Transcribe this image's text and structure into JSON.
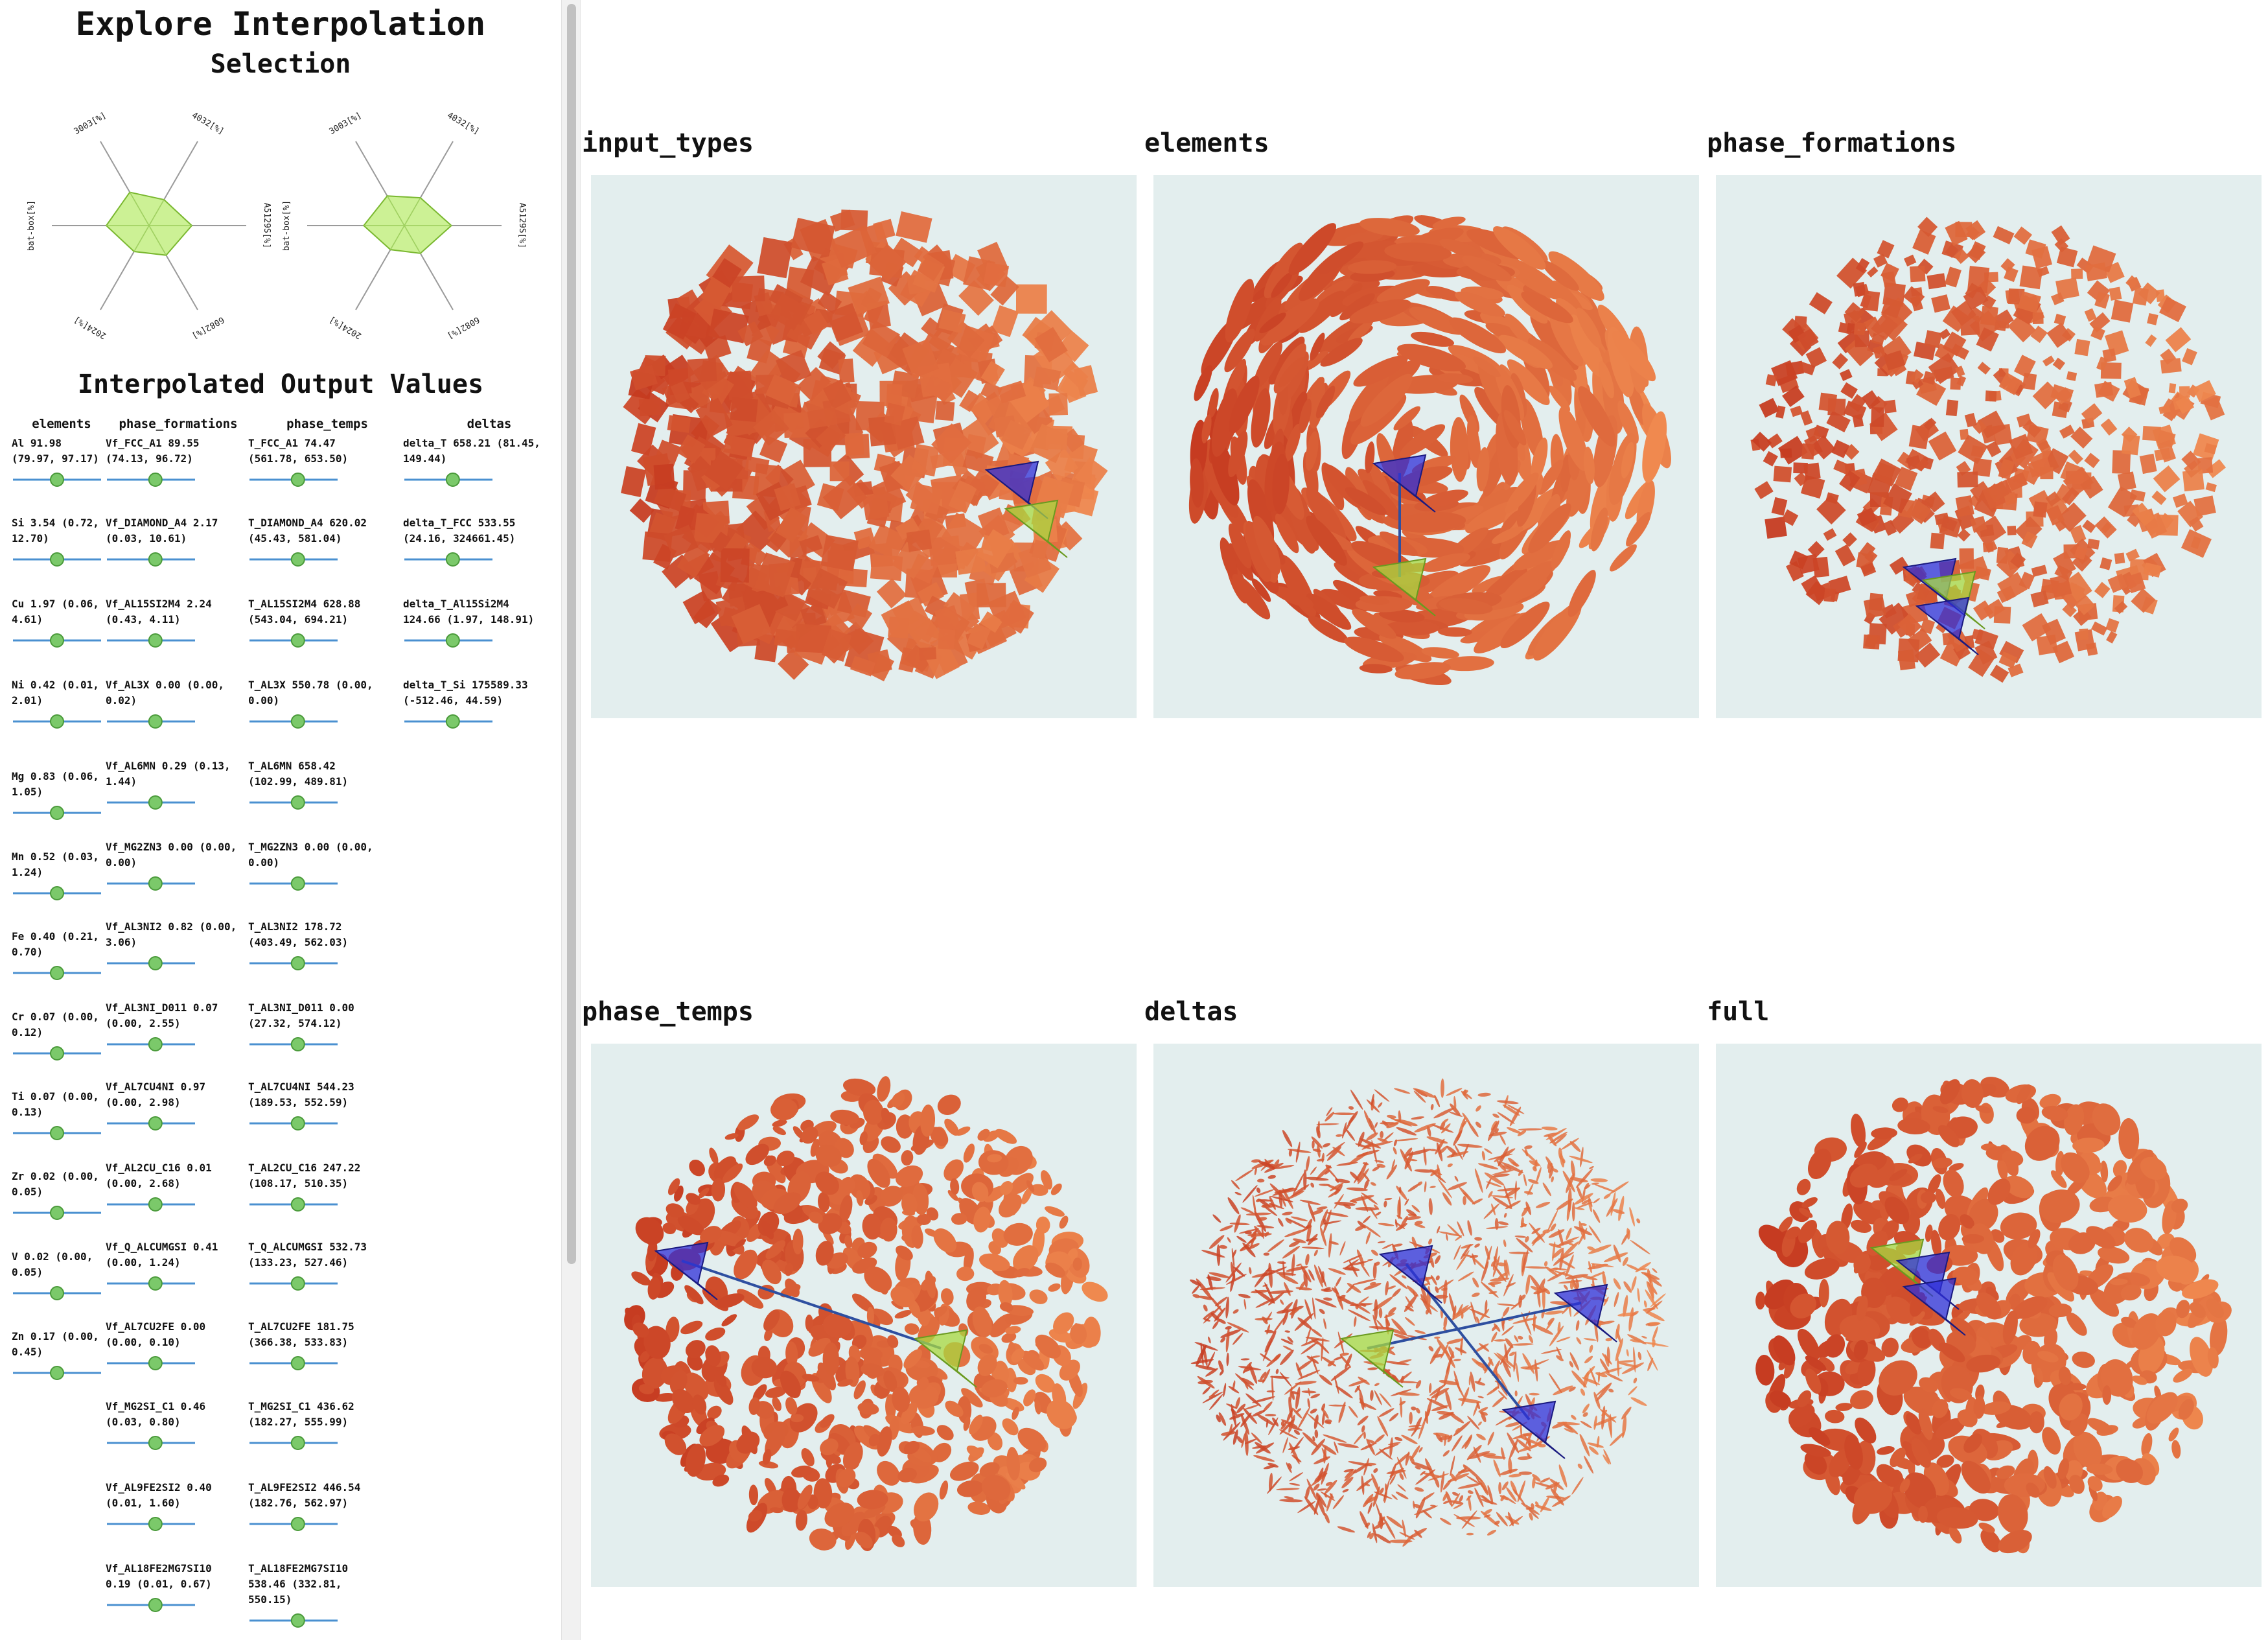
{
  "sidebar": {
    "title": "Explore Interpolation",
    "selection_title": "Selection",
    "radar_labels": [
      "3003[%]",
      "4032[%]",
      "A5129S[%]",
      "6082[%]",
      "2024[%]",
      "bat-box[%]"
    ],
    "radar_values": [
      [
        0.18,
        0.14,
        0.2,
        0.16,
        0.14,
        0.2
      ],
      [
        0.16,
        0.15,
        0.22,
        0.15,
        0.13,
        0.19
      ]
    ],
    "output_title": "Interpolated Output Values",
    "columns": [
      "elements",
      "phase_formations",
      "phase_temps",
      "deltas"
    ],
    "elements": [
      {
        "label": "Al 91.98 (79.97, 97.17)",
        "pos": 0.5
      },
      {
        "label": "Si 3.54 (0.72, 12.70)",
        "pos": 0.5
      },
      {
        "label": "Cu 1.97 (0.06, 4.61)",
        "pos": 0.5
      },
      {
        "label": "Ni 0.42 (0.01, 2.01)",
        "pos": 0.5
      },
      {
        "label": "Mg 0.83 (0.06, 1.05)",
        "pos": 0.5
      },
      {
        "label": "Mn 0.52 (0.03, 1.24)",
        "pos": 0.5
      },
      {
        "label": "Fe 0.40 (0.21, 0.70)",
        "pos": 0.5
      },
      {
        "label": "Cr 0.07 (0.00, 0.12)",
        "pos": 0.5
      },
      {
        "label": "Ti 0.07 (0.00, 0.13)",
        "pos": 0.5
      },
      {
        "label": "Zr 0.02 (0.00, 0.05)",
        "pos": 0.5
      },
      {
        "label": "V 0.02 (0.00, 0.05)",
        "pos": 0.5
      },
      {
        "label": "Zn 0.17 (0.00, 0.45)",
        "pos": 0.5
      }
    ],
    "phase_formations": [
      {
        "label": "Vf_FCC_A1 89.55 (74.13, 96.72)",
        "pos": 0.55
      },
      {
        "label": "Vf_DIAMOND_A4 2.17 (0.03, 10.61)",
        "pos": 0.55
      },
      {
        "label": "Vf_AL15SI2M4 2.24 (0.43, 4.11)",
        "pos": 0.55
      },
      {
        "label": "Vf_AL3X 0.00 (0.00, 0.02)",
        "pos": 0.55
      },
      {
        "label": "Vf_AL6MN 0.29 (0.13, 1.44)",
        "pos": 0.55
      },
      {
        "label": "Vf_MG2ZN3 0.00 (0.00, 0.00)",
        "pos": 0.55
      },
      {
        "label": "Vf_AL3NI2 0.82 (0.00, 3.06)",
        "pos": 0.55
      },
      {
        "label": "Vf_AL3NI_D011 0.07 (0.00, 2.55)",
        "pos": 0.55
      },
      {
        "label": "Vf_AL7CU4NI 0.97 (0.00, 2.98)",
        "pos": 0.55
      },
      {
        "label": "Vf_AL2CU_C16 0.01 (0.00, 2.68)",
        "pos": 0.55
      },
      {
        "label": "Vf_Q_ALCUMGSI 0.41 (0.00, 1.24)",
        "pos": 0.55
      },
      {
        "label": "Vf_AL7CU2FE 0.00 (0.00, 0.10)",
        "pos": 0.55
      },
      {
        "label": "Vf_MG2SI_C1 0.46 (0.03, 0.80)",
        "pos": 0.55
      },
      {
        "label": "Vf_AL9FE2SI2 0.40 (0.01, 1.60)",
        "pos": 0.55
      },
      {
        "label": "Vf_AL18FE2MG7SI10 0.19 (0.01, 0.67)",
        "pos": 0.55
      }
    ],
    "phase_temps": [
      {
        "label": "T_FCC_A1 74.47 (561.78, 653.50)",
        "pos": 0.55
      },
      {
        "label": "T_DIAMOND_A4 620.02 (45.43, 581.04)",
        "pos": 0.55
      },
      {
        "label": "T_AL15SI2M4 628.88 (543.04, 694.21)",
        "pos": 0.55
      },
      {
        "label": "T_AL3X 550.78 (0.00, 0.00)",
        "pos": 0.55
      },
      {
        "label": "T_AL6MN 658.42 (102.99, 489.81)",
        "pos": 0.55
      },
      {
        "label": "T_MG2ZN3 0.00 (0.00, 0.00)",
        "pos": 0.55
      },
      {
        "label": "T_AL3NI2 178.72 (403.49, 562.03)",
        "pos": 0.55
      },
      {
        "label": "T_AL3NI_D011 0.00 (27.32, 574.12)",
        "pos": 0.55
      },
      {
        "label": "T_AL7CU4NI 544.23 (189.53, 552.59)",
        "pos": 0.55
      },
      {
        "label": "T_AL2CU_C16 247.22 (108.17, 510.35)",
        "pos": 0.55
      },
      {
        "label": "T_Q_ALCUMGSI 532.73 (133.23, 527.46)",
        "pos": 0.55
      },
      {
        "label": "T_AL7CU2FE 181.75 (366.38, 533.83)",
        "pos": 0.55
      },
      {
        "label": "T_MG2SI_C1 436.62 (182.27, 555.99)",
        "pos": 0.55
      },
      {
        "label": "T_AL9FE2SI2 446.54 (182.76, 562.97)",
        "pos": 0.55
      },
      {
        "label": "T_AL18FE2MG7SI10 538.46 (332.81, 550.15)",
        "pos": 0.55
      }
    ],
    "deltas": [
      {
        "label": "delta_T 658.21 (81.45, 149.44)",
        "pos": 0.55
      },
      {
        "label": "delta_T_FCC 533.55 (24.16, 324661.45)",
        "pos": 0.55
      },
      {
        "label": "delta_T_Al15Si2M4 124.66 (1.97, 148.91)",
        "pos": 0.55
      },
      {
        "label": "delta_T_Si 175589.33 (-512.46, 44.59)",
        "pos": 0.55
      }
    ]
  },
  "plots": [
    {
      "title": "input_types"
    },
    {
      "title": "elements"
    },
    {
      "title": "phase_formations"
    },
    {
      "title": "phase_temps"
    },
    {
      "title": "deltas"
    },
    {
      "title": "full"
    }
  ],
  "colors": {
    "panel_bg": "#e3eeee",
    "points_dark": "#c53a20",
    "points_light": "#f08a50",
    "marker_blue": "#2f2fd8",
    "marker_green": "#a8d840",
    "line_blue": "#2e4fa0",
    "slider_line": "#4a90d0",
    "slider_knob": "#7bc96a"
  }
}
